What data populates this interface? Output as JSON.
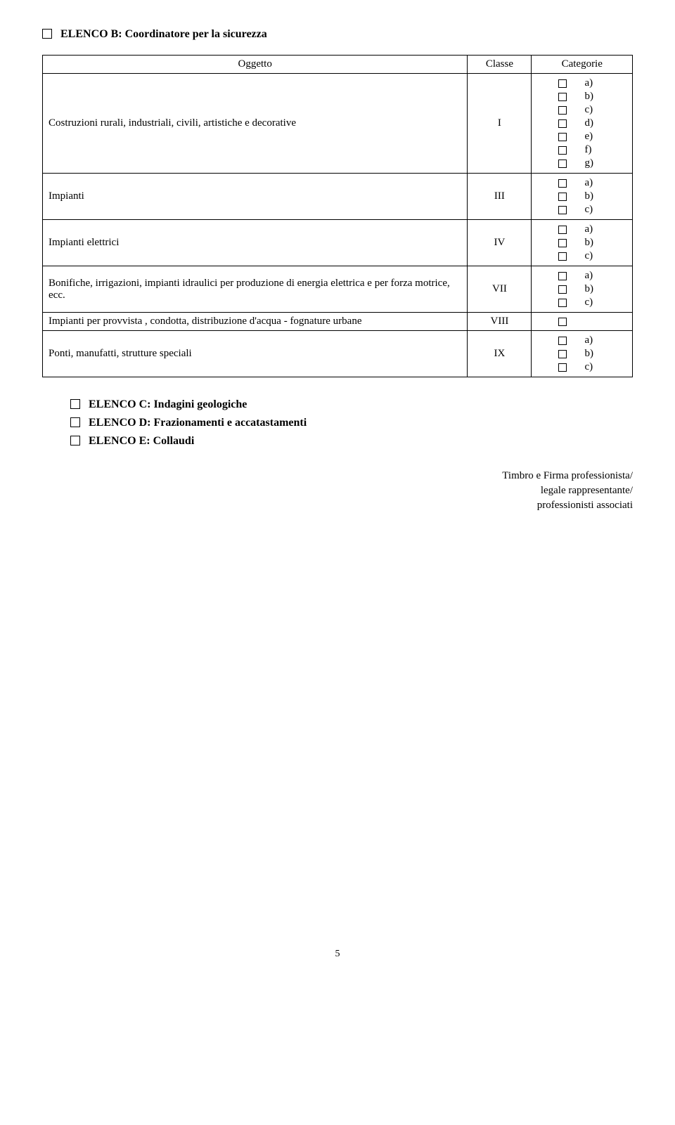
{
  "elenco_b": {
    "title": "ELENCO B: Coordinatore per la sicurezza",
    "headers": {
      "oggetto": "Oggetto",
      "classe": "Classe",
      "categorie": "Categorie"
    },
    "rows": [
      {
        "label": "Costruzioni rurali, industriali, civili, artistiche e decorative",
        "classe": "I",
        "cats": [
          "a)",
          "b)",
          "c)",
          "d)",
          "e)",
          "f)",
          "g)"
        ]
      },
      {
        "label": "Impianti",
        "classe": "III",
        "cats": [
          "a)",
          "b)",
          "c)"
        ]
      },
      {
        "label": "Impianti elettrici",
        "classe": "IV",
        "cats": [
          "a)",
          "b)",
          "c)"
        ]
      },
      {
        "label": "Bonifiche, irrigazioni, impianti idraulici per produzione di energia elettrica e per forza motrice, ecc.",
        "classe": "VII",
        "cats": [
          "a)",
          "b)",
          "c)"
        ]
      },
      {
        "label": "Impianti per provvista , condotta, distribuzione d'acqua - fognature urbane",
        "classe": "VIII",
        "cats": [
          ""
        ]
      },
      {
        "label": "Ponti, manufatti, strutture speciali",
        "classe": "IX",
        "cats": [
          "a)",
          "b)",
          "c)"
        ]
      }
    ]
  },
  "elenco_c": "ELENCO C: Indagini geologiche",
  "elenco_d": "ELENCO D: Frazionamenti e accatastamenti",
  "elenco_e": "ELENCO E: Collaudi",
  "signature": {
    "line1": "Timbro e Firma professionista/",
    "line2": "legale rappresentante/",
    "line3": "professionisti associati"
  },
  "page_number": "5"
}
